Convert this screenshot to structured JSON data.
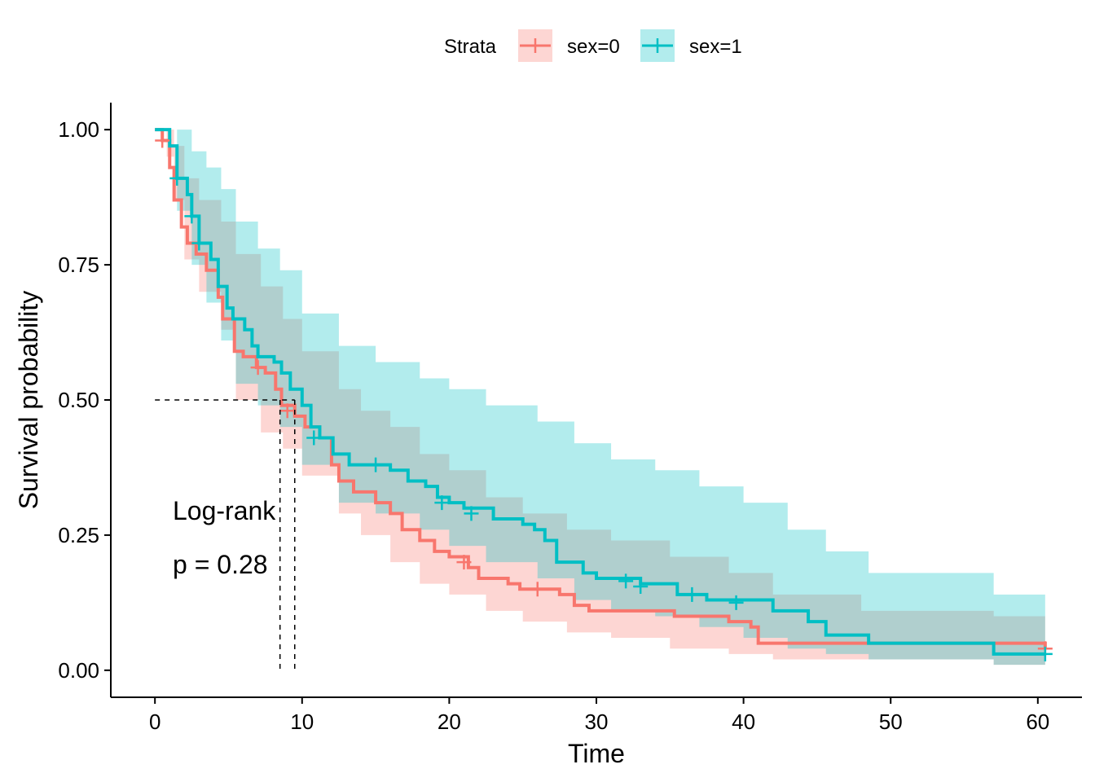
{
  "chart_data": {
    "type": "line",
    "subtype": "kaplan-meier",
    "xlabel": "Time",
    "ylabel": "Survival probability",
    "xlim": [
      -3,
      63
    ],
    "ylim": [
      -0.05,
      1.05
    ],
    "xticks": [
      0,
      10,
      20,
      30,
      40,
      50,
      60
    ],
    "yticks": [
      0.0,
      0.25,
      0.5,
      0.75,
      1.0
    ],
    "ytick_labels": [
      "0.00",
      "0.25",
      "0.50",
      "0.75",
      "1.00"
    ],
    "grid": false,
    "legend": {
      "title": "Strata",
      "position": "top",
      "entries": [
        "sex=0",
        "sex=1"
      ]
    },
    "annotation": {
      "line1": "Log-rank",
      "line2": "p = 0.28"
    },
    "median_survival": {
      "y": 0.5,
      "x": [
        8.5,
        9.5
      ]
    },
    "series": [
      {
        "name": "sex=0",
        "color": "#F8766D",
        "band_color": "#F8766D",
        "steps": [
          [
            0,
            1.0
          ],
          [
            0.5,
            0.98
          ],
          [
            1.0,
            0.93
          ],
          [
            1.3,
            0.87
          ],
          [
            1.8,
            0.82
          ],
          [
            2.2,
            0.79
          ],
          [
            2.8,
            0.77
          ],
          [
            3.5,
            0.74
          ],
          [
            4.3,
            0.69
          ],
          [
            4.6,
            0.65
          ],
          [
            5.4,
            0.59
          ],
          [
            6.0,
            0.58
          ],
          [
            6.9,
            0.56
          ],
          [
            7.5,
            0.55
          ],
          [
            8.2,
            0.52
          ],
          [
            8.6,
            0.49
          ],
          [
            9.5,
            0.47
          ],
          [
            10.2,
            0.45
          ],
          [
            11.2,
            0.43
          ],
          [
            12.0,
            0.38
          ],
          [
            12.5,
            0.35
          ],
          [
            13.5,
            0.33
          ],
          [
            15.0,
            0.31
          ],
          [
            16.0,
            0.29
          ],
          [
            16.8,
            0.26
          ],
          [
            18.0,
            0.24
          ],
          [
            19.0,
            0.22
          ],
          [
            20.0,
            0.21
          ],
          [
            21.3,
            0.19
          ],
          [
            22.0,
            0.17
          ],
          [
            24.0,
            0.16
          ],
          [
            24.8,
            0.15
          ],
          [
            27.5,
            0.14
          ],
          [
            28.5,
            0.12
          ],
          [
            29.5,
            0.11
          ],
          [
            31.5,
            0.11
          ],
          [
            35.3,
            0.1
          ],
          [
            39.0,
            0.09
          ],
          [
            40.5,
            0.08
          ],
          [
            41.0,
            0.05
          ],
          [
            45.0,
            0.05
          ],
          [
            60.5,
            0.04
          ]
        ],
        "censor": [
          [
            0.5,
            0.98
          ],
          [
            7.0,
            0.56
          ],
          [
            9.0,
            0.48
          ],
          [
            21.0,
            0.2
          ],
          [
            26.0,
            0.15
          ],
          [
            60.5,
            0.04
          ]
        ],
        "band": [
          [
            0,
            1.0,
            1.0
          ],
          [
            0.8,
            0.95,
            1.0
          ],
          [
            1.3,
            0.87,
            0.97
          ],
          [
            2.0,
            0.76,
            0.91
          ],
          [
            3.0,
            0.7,
            0.87
          ],
          [
            4.5,
            0.63,
            0.83
          ],
          [
            5.5,
            0.5,
            0.77
          ],
          [
            7.2,
            0.44,
            0.71
          ],
          [
            8.7,
            0.41,
            0.65
          ],
          [
            10.0,
            0.36,
            0.59
          ],
          [
            12.5,
            0.29,
            0.52
          ],
          [
            14.0,
            0.25,
            0.48
          ],
          [
            16.0,
            0.2,
            0.45
          ],
          [
            18.0,
            0.16,
            0.4
          ],
          [
            20.0,
            0.14,
            0.37
          ],
          [
            22.5,
            0.11,
            0.32
          ],
          [
            25.0,
            0.09,
            0.29
          ],
          [
            28.0,
            0.07,
            0.26
          ],
          [
            31.0,
            0.06,
            0.24
          ],
          [
            35.0,
            0.04,
            0.21
          ],
          [
            39.0,
            0.03,
            0.18
          ],
          [
            42.0,
            0.02,
            0.14
          ],
          [
            48.0,
            0.02,
            0.11
          ],
          [
            57.0,
            0.01,
            0.1
          ],
          [
            60.5,
            0.01,
            0.09
          ]
        ]
      },
      {
        "name": "sex=1",
        "color": "#00BFC4",
        "band_color": "#00BFC4",
        "steps": [
          [
            0,
            1.0
          ],
          [
            1.0,
            0.97
          ],
          [
            1.5,
            0.91
          ],
          [
            2.2,
            0.88
          ],
          [
            2.5,
            0.84
          ],
          [
            3.0,
            0.79
          ],
          [
            3.8,
            0.76
          ],
          [
            4.3,
            0.71
          ],
          [
            4.9,
            0.67
          ],
          [
            5.3,
            0.65
          ],
          [
            6.1,
            0.63
          ],
          [
            6.6,
            0.6
          ],
          [
            7.0,
            0.58
          ],
          [
            8.1,
            0.57
          ],
          [
            8.6,
            0.55
          ],
          [
            9.2,
            0.52
          ],
          [
            10.0,
            0.49
          ],
          [
            10.6,
            0.45
          ],
          [
            11.2,
            0.43
          ],
          [
            12.1,
            0.4
          ],
          [
            13.2,
            0.38
          ],
          [
            16.0,
            0.37
          ],
          [
            17.2,
            0.35
          ],
          [
            18.4,
            0.34
          ],
          [
            19.2,
            0.32
          ],
          [
            20.0,
            0.31
          ],
          [
            21.0,
            0.3
          ],
          [
            23.0,
            0.28
          ],
          [
            25.0,
            0.27
          ],
          [
            25.8,
            0.26
          ],
          [
            26.5,
            0.24
          ],
          [
            27.3,
            0.2
          ],
          [
            29.1,
            0.18
          ],
          [
            30.0,
            0.17
          ],
          [
            33.0,
            0.16
          ],
          [
            35.5,
            0.14
          ],
          [
            37.5,
            0.13
          ],
          [
            42.0,
            0.11
          ],
          [
            44.4,
            0.09
          ],
          [
            45.6,
            0.065
          ],
          [
            48.5,
            0.05
          ],
          [
            57.0,
            0.03
          ],
          [
            60.5,
            0.03
          ]
        ],
        "censor": [
          [
            1.5,
            0.91
          ],
          [
            2.5,
            0.84
          ],
          [
            3.0,
            0.79
          ],
          [
            10.8,
            0.43
          ],
          [
            15.0,
            0.38
          ],
          [
            19.5,
            0.31
          ],
          [
            21.5,
            0.29
          ],
          [
            32.0,
            0.165
          ],
          [
            33.0,
            0.155
          ],
          [
            36.5,
            0.14
          ],
          [
            39.5,
            0.125
          ],
          [
            60.5,
            0.03
          ]
        ],
        "band": [
          [
            0,
            1.0,
            1.0
          ],
          [
            1.5,
            0.85,
            1.0
          ],
          [
            2.5,
            0.75,
            0.96
          ],
          [
            3.5,
            0.68,
            0.93
          ],
          [
            4.5,
            0.61,
            0.89
          ],
          [
            5.5,
            0.53,
            0.83
          ],
          [
            7.0,
            0.49,
            0.78
          ],
          [
            8.5,
            0.45,
            0.74
          ],
          [
            10.0,
            0.38,
            0.66
          ],
          [
            12.5,
            0.31,
            0.6
          ],
          [
            15.0,
            0.29,
            0.57
          ],
          [
            18.0,
            0.26,
            0.54
          ],
          [
            20.0,
            0.23,
            0.52
          ],
          [
            22.5,
            0.2,
            0.49
          ],
          [
            26.0,
            0.17,
            0.46
          ],
          [
            28.5,
            0.13,
            0.42
          ],
          [
            31.0,
            0.11,
            0.39
          ],
          [
            34.0,
            0.1,
            0.37
          ],
          [
            37.0,
            0.08,
            0.34
          ],
          [
            40.0,
            0.06,
            0.31
          ],
          [
            43.0,
            0.04,
            0.26
          ],
          [
            45.6,
            0.03,
            0.22
          ],
          [
            48.5,
            0.02,
            0.18
          ],
          [
            57.0,
            0.01,
            0.14
          ],
          [
            60.5,
            0.01,
            0.12
          ]
        ]
      }
    ]
  }
}
